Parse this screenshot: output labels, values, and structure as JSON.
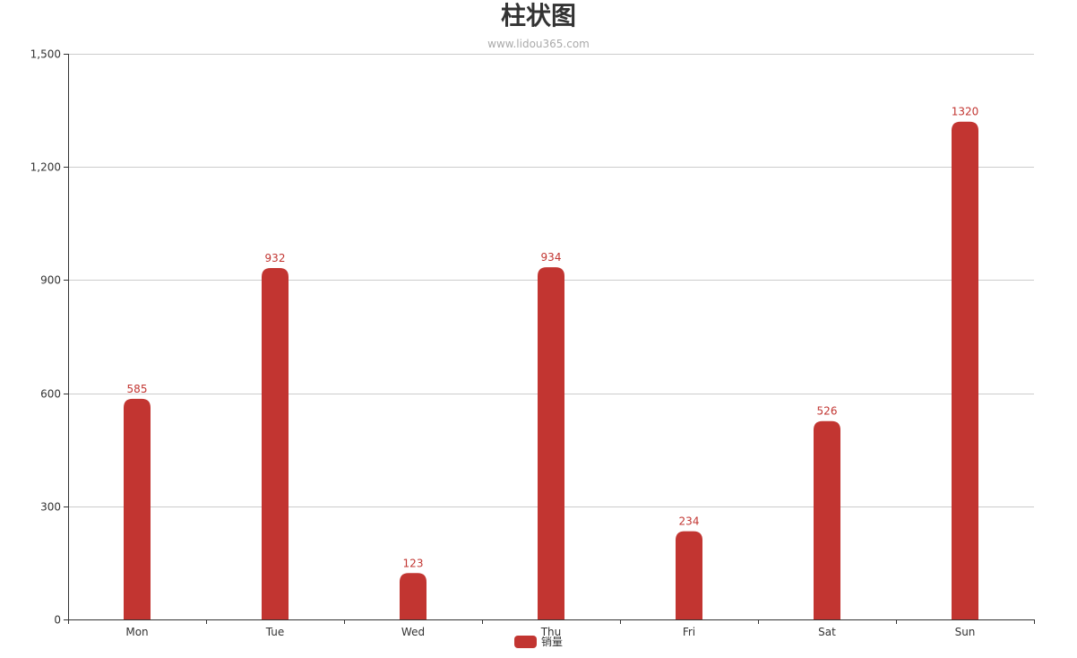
{
  "chart_data": {
    "type": "bar",
    "title": "柱状图",
    "subtitle": "www.lidou365.com",
    "categories": [
      "Mon",
      "Tue",
      "Wed",
      "Thu",
      "Fri",
      "Sat",
      "Sun"
    ],
    "series": [
      {
        "name": "销量",
        "values": [
          585,
          932,
          123,
          934,
          234,
          526,
          1320
        ],
        "color": "#c23531"
      }
    ],
    "ylim": [
      0,
      1500
    ],
    "yticks": [
      0,
      300,
      600,
      900,
      1200,
      1500
    ],
    "ytick_labels": [
      "0",
      "300",
      "600",
      "900",
      "1,200",
      "1,500"
    ],
    "grid": true,
    "legend_position": "bottom-center",
    "show_data_labels": true
  }
}
